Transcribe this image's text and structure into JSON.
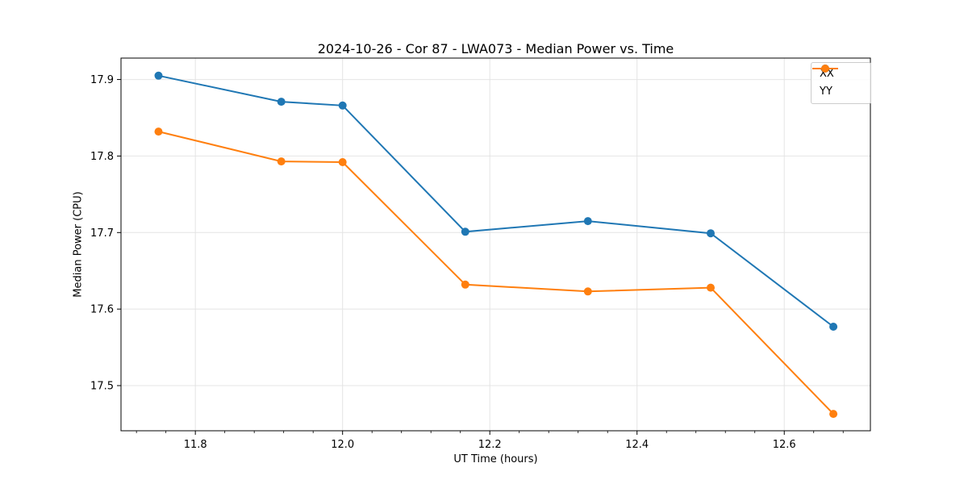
{
  "chart_data": {
    "type": "line",
    "title": "2024-10-26 - Cor 87 - LWA073 - Median Power vs. Time",
    "xlabel": "UT Time (hours)",
    "ylabel": "Median Power (CPU)",
    "x": [
      11.75,
      11.9167,
      12.0,
      12.1667,
      12.3333,
      12.5,
      12.6667
    ],
    "series": [
      {
        "name": "XX",
        "color": "#1f77b4",
        "values": [
          17.905,
          17.871,
          17.866,
          17.701,
          17.715,
          17.699,
          17.577
        ]
      },
      {
        "name": "YY",
        "color": "#ff7f0e",
        "values": [
          17.832,
          17.793,
          17.792,
          17.632,
          17.623,
          17.628,
          17.463
        ]
      }
    ],
    "xlim": [
      11.699,
      12.717
    ],
    "ylim": [
      17.441,
      17.928
    ],
    "xticks": [
      11.8,
      12.0,
      12.2,
      12.4,
      12.6
    ],
    "yticks": [
      17.5,
      17.6,
      17.7,
      17.8,
      17.9
    ],
    "x_minor_step": 0.04,
    "tick_decimals": 1,
    "grid": true,
    "grid_color": "#e4e4e4",
    "spine_color": "#000000",
    "legend": {
      "position": "upper-right",
      "entries": [
        "XX",
        "YY"
      ]
    }
  }
}
